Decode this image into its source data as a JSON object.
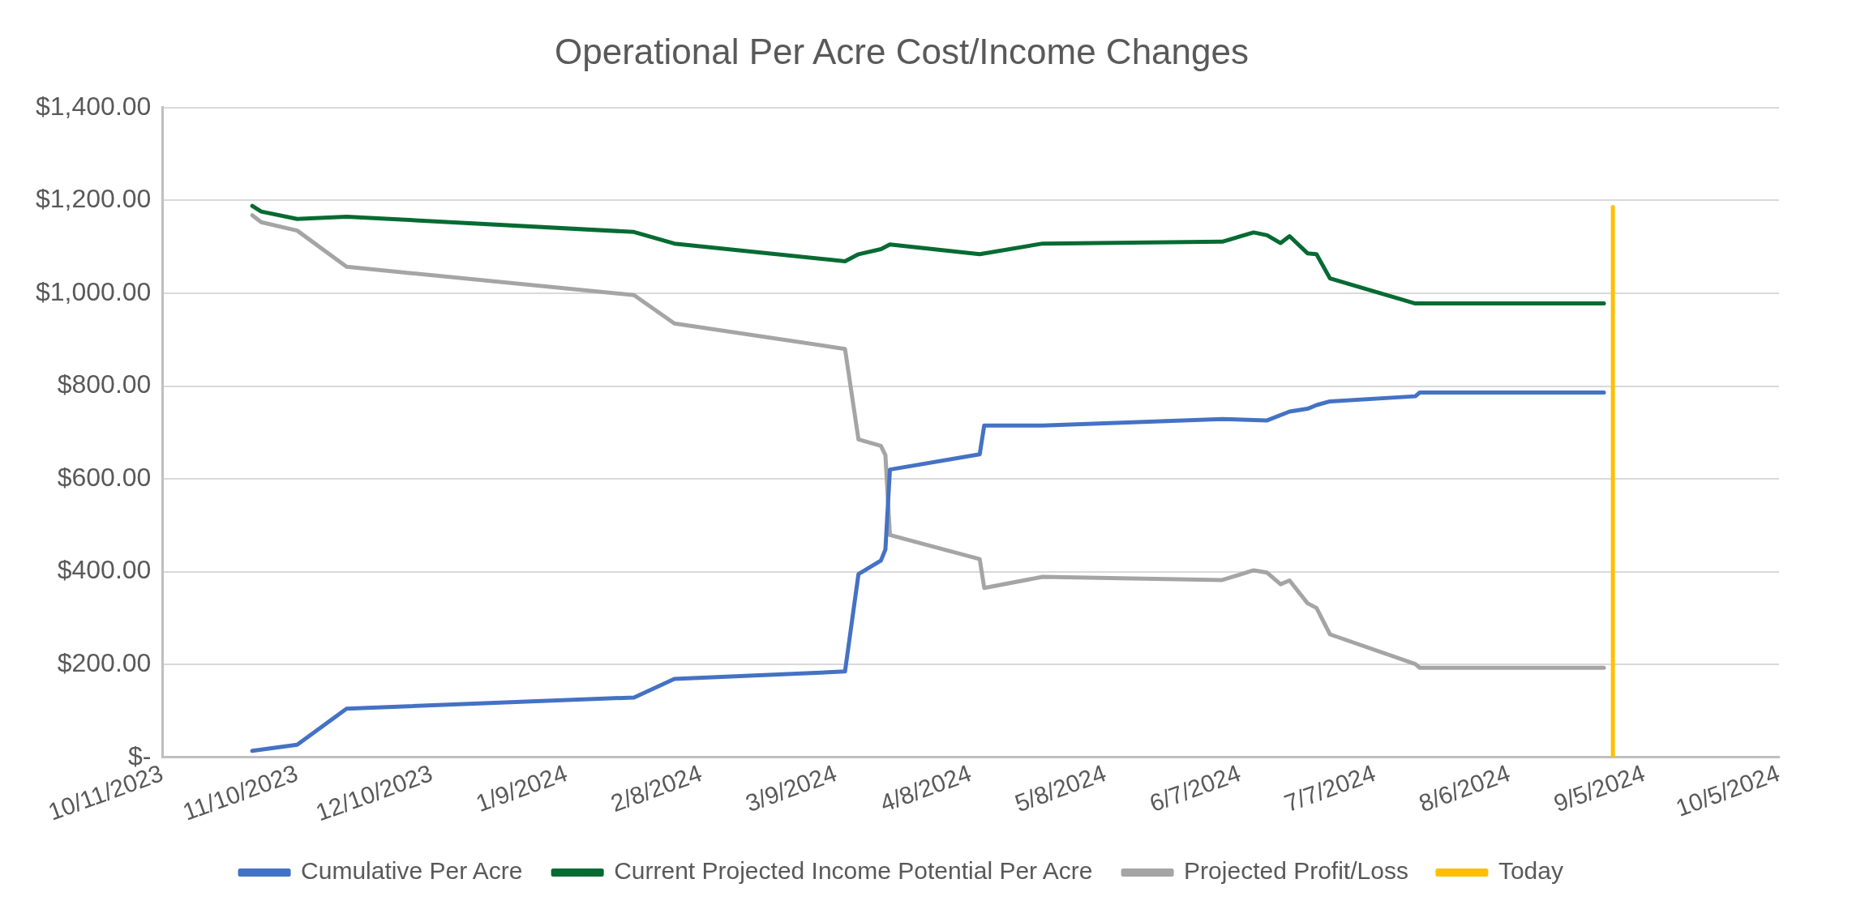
{
  "chart_data": {
    "type": "line",
    "title": "Operational Per Acre Cost/Income Changes",
    "xlim": [
      "2023-10-11",
      "2024-10-05"
    ],
    "xticks": [
      {
        "value": "2023-10-11",
        "label": "10/11/2023"
      },
      {
        "value": "2023-11-10",
        "label": "11/10/2023"
      },
      {
        "value": "2023-12-10",
        "label": "12/10/2023"
      },
      {
        "value": "2024-01-09",
        "label": "1/9/2024"
      },
      {
        "value": "2024-02-08",
        "label": "2/8/2024"
      },
      {
        "value": "2024-03-09",
        "label": "3/9/2024"
      },
      {
        "value": "2024-04-08",
        "label": "4/8/2024"
      },
      {
        "value": "2024-05-08",
        "label": "5/8/2024"
      },
      {
        "value": "2024-06-07",
        "label": "6/7/2024"
      },
      {
        "value": "2024-07-07",
        "label": "7/7/2024"
      },
      {
        "value": "2024-08-06",
        "label": "8/6/2024"
      },
      {
        "value": "2024-09-05",
        "label": "9/5/2024"
      },
      {
        "value": "2024-10-05",
        "label": "10/5/2024"
      }
    ],
    "ylim": [
      0,
      1400
    ],
    "yticks": [
      {
        "value": 0,
        "label": "$-"
      },
      {
        "value": 200,
        "label": "$200.00"
      },
      {
        "value": 400,
        "label": "$400.00"
      },
      {
        "value": 600,
        "label": "$600.00"
      },
      {
        "value": 800,
        "label": "$800.00"
      },
      {
        "value": 1000,
        "label": "$1,000.00"
      },
      {
        "value": 1200,
        "label": "$1,200.00"
      },
      {
        "value": 1400,
        "label": "$1,400.00"
      }
    ],
    "grid": "y",
    "legend": "bottom",
    "series": [
      {
        "name": "Cumulative Per Acre",
        "color": "#4472c4",
        "x": [
          "2023-10-31",
          "2023-11-10",
          "2023-11-21",
          "2024-01-24",
          "2024-02-02",
          "2024-03-11",
          "2024-03-14",
          "2024-03-19",
          "2024-03-20",
          "2024-03-21",
          "2024-04-10",
          "2024-04-11",
          "2024-04-24",
          "2024-06-03",
          "2024-06-13",
          "2024-06-18",
          "2024-06-22",
          "2024-06-24",
          "2024-06-27",
          "2024-07-16",
          "2024-07-17",
          "2024-08-27"
        ],
        "values": [
          14,
          27,
          105,
          129,
          169,
          185,
          395,
          424,
          448,
          620,
          653,
          715,
          715,
          729,
          726,
          745,
          751,
          759,
          767,
          778,
          786,
          786
        ]
      },
      {
        "name": "Current Projected Income Potential Per Acre",
        "color": "#056b32",
        "x": [
          "2023-10-31",
          "2023-11-02",
          "2023-11-10",
          "2023-11-21",
          "2024-01-24",
          "2024-02-02",
          "2024-03-11",
          "2024-03-14",
          "2024-03-19",
          "2024-03-21",
          "2024-04-10",
          "2024-04-24",
          "2024-06-03",
          "2024-06-10",
          "2024-06-13",
          "2024-06-16",
          "2024-06-18",
          "2024-06-22",
          "2024-06-24",
          "2024-06-27",
          "2024-07-16",
          "2024-08-27"
        ],
        "values": [
          1188,
          1176,
          1160,
          1165,
          1132,
          1107,
          1069,
          1084,
          1095,
          1105,
          1084,
          1107,
          1111,
          1131,
          1125,
          1108,
          1123,
          1086,
          1084,
          1032,
          978,
          978
        ]
      },
      {
        "name": "Projected Profit/Loss",
        "color": "#a5a5a5",
        "x": [
          "2023-10-31",
          "2023-11-02",
          "2023-11-10",
          "2023-11-21",
          "2024-01-24",
          "2024-02-02",
          "2024-03-11",
          "2024-03-14",
          "2024-03-19",
          "2024-03-20",
          "2024-03-21",
          "2024-04-10",
          "2024-04-11",
          "2024-04-24",
          "2024-06-03",
          "2024-06-10",
          "2024-06-13",
          "2024-06-16",
          "2024-06-18",
          "2024-06-22",
          "2024-06-24",
          "2024-06-27",
          "2024-07-16",
          "2024-07-17",
          "2024-08-27"
        ],
        "values": [
          1168,
          1153,
          1135,
          1057,
          996,
          935,
          880,
          685,
          671,
          651,
          479,
          427,
          365,
          389,
          382,
          403,
          398,
          373,
          381,
          332,
          322,
          265,
          201,
          193,
          193
        ]
      },
      {
        "name": "Today",
        "color": "#ffc000",
        "x": [
          "2024-08-29",
          "2024-08-29"
        ],
        "values": [
          0,
          1186
        ]
      }
    ]
  }
}
